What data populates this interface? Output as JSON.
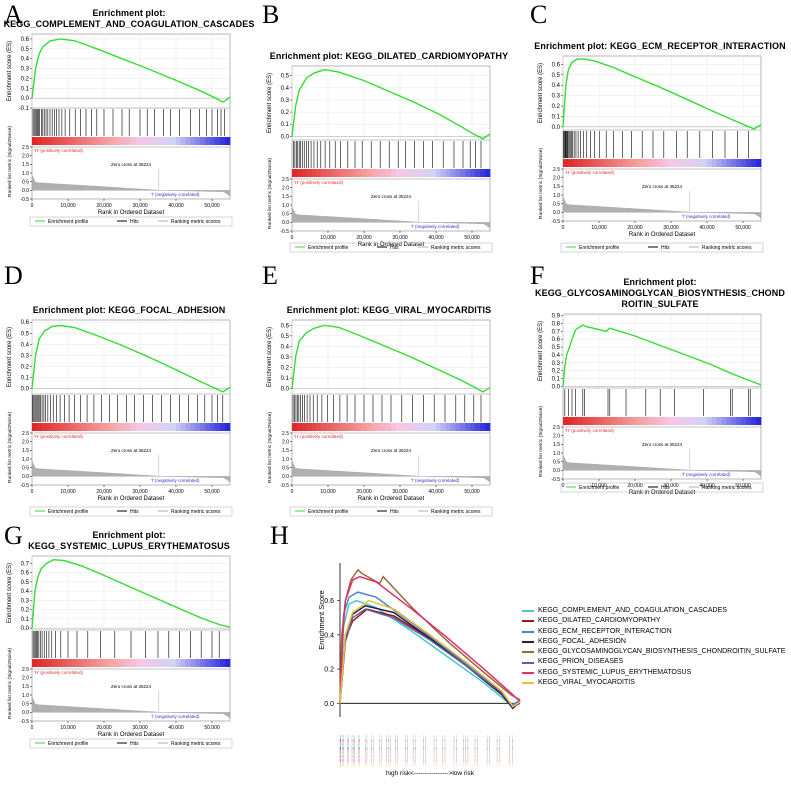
{
  "panel_letters": [
    "A",
    "B",
    "C",
    "D",
    "E",
    "F",
    "G",
    "H"
  ],
  "common": {
    "es_axis_label": "Enrichment score (ES)",
    "metric_axis_label": "Ranked list metric (Signal2Noise)",
    "x_axis_label": "Rank in Ordered Dataset",
    "pos_label": "'H' (positively correlated)",
    "neg_label": "'l' (negatively correlated)",
    "zero_cross": "Zero cross at 35224",
    "legend": [
      "Enrichment profile",
      "Hits",
      "Ranking metric scores"
    ],
    "x_ticks": [
      "0",
      "10,000",
      "20,000",
      "30,000",
      "40,000",
      "50,000"
    ],
    "metric_ticks": [
      "2.5",
      "2.0",
      "1.5",
      "1.0",
      "0.5",
      "0.0",
      "-0.5"
    ],
    "colors": {
      "es": "#33dd33",
      "hits": "#000000",
      "metric": "#b0b0b0",
      "pos_text": "#e03030",
      "neg_text": "#3030d0"
    }
  },
  "chart_data": [
    {
      "id": "A",
      "type": "line",
      "title_lines": [
        "Enrichment plot:",
        "KEGG_COMPLEMENT_AND_COAGULATION_CASCADES"
      ],
      "ylim": [
        -0.1,
        0.65
      ],
      "y_ticks": [
        "0.6",
        "0.5",
        "0.4",
        "0.3",
        "0.2",
        "0.1",
        "0.0",
        "-0.1"
      ],
      "x": [
        0,
        1000,
        2000,
        3000,
        5000,
        8000,
        12000,
        18000,
        25000,
        32000,
        40000,
        47000,
        51000,
        53000,
        54000,
        55000
      ],
      "y": [
        0,
        0.3,
        0.45,
        0.52,
        0.58,
        0.6,
        0.58,
        0.5,
        0.4,
        0.3,
        0.18,
        0.07,
        0.0,
        -0.04,
        -0.02,
        0.01
      ],
      "hits": [
        300,
        600,
        900,
        1200,
        1500,
        1800,
        2100,
        2600,
        3000,
        3400,
        3900,
        4400,
        5000,
        5600,
        6200,
        6800,
        7500,
        8300,
        9200,
        10500,
        12000,
        13500,
        15000,
        16500,
        18000,
        20000,
        22500,
        25000,
        27000,
        30000,
        32000,
        34000,
        36500,
        38500,
        41000,
        44000,
        46500,
        48500,
        50000,
        51500,
        52500,
        53500
      ]
    },
    {
      "id": "B",
      "type": "line",
      "title_lines": [
        "Enrichment plot: KEGG_DILATED_CARDIOMYOPATHY"
      ],
      "ylim": [
        -0.03,
        0.58
      ],
      "y_ticks": [
        "0.5",
        "0.4",
        "0.3",
        "0.2",
        "0.1",
        "0.0"
      ],
      "x": [
        0,
        1000,
        2000,
        4000,
        6000,
        9000,
        13000,
        20000,
        27000,
        34000,
        41000,
        47000,
        51000,
        53000,
        54000,
        55000
      ],
      "y": [
        0,
        0.25,
        0.38,
        0.48,
        0.52,
        0.55,
        0.53,
        0.46,
        0.37,
        0.28,
        0.18,
        0.08,
        0.01,
        -0.02,
        0.0,
        0.02
      ],
      "hits": [
        400,
        800,
        1200,
        1600,
        2000,
        2400,
        2900,
        3400,
        4000,
        4600,
        5300,
        6100,
        7000,
        8000,
        9200,
        10500,
        12000,
        13500,
        15500,
        17500,
        19500,
        22000,
        24500,
        27000,
        29500,
        31500,
        34000,
        36500,
        39000,
        42000,
        45000,
        47500,
        49500,
        51000,
        52500
      ]
    },
    {
      "id": "C",
      "type": "line",
      "title_lines": [
        "Enrichment plot: KEGG_ECM_RECEPTOR_INTERACTION"
      ],
      "ylim": [
        -0.03,
        0.68
      ],
      "y_ticks": [
        "0.6",
        "0.5",
        "0.4",
        "0.3",
        "0.2",
        "0.1",
        "0.0"
      ],
      "x": [
        0,
        800,
        1500,
        2500,
        4000,
        6000,
        9000,
        14000,
        20000,
        27000,
        34000,
        41000,
        47000,
        51000,
        53000,
        54000,
        55000
      ],
      "y": [
        0,
        0.4,
        0.55,
        0.62,
        0.65,
        0.65,
        0.63,
        0.57,
        0.48,
        0.38,
        0.27,
        0.16,
        0.07,
        0.01,
        -0.02,
        0.0,
        0.02
      ],
      "hits": [
        200,
        400,
        600,
        800,
        1000,
        1200,
        1400,
        1700,
        2000,
        2300,
        2700,
        3100,
        3600,
        4200,
        4900,
        5700,
        6600,
        7600,
        8800,
        10200,
        12000,
        14000,
        16500,
        19000,
        22000,
        25000,
        28000,
        31500,
        34500,
        38000,
        41500,
        45000,
        48500,
        51500
      ]
    },
    {
      "id": "D",
      "type": "line",
      "title_lines": [
        "Enrichment plot: KEGG_FOCAL_ADHESION"
      ],
      "ylim": [
        -0.05,
        0.62
      ],
      "y_ticks": [
        "0.6",
        "0.5",
        "0.4",
        "0.3",
        "0.2",
        "0.1",
        "0.0"
      ],
      "x": [
        0,
        1000,
        2000,
        3500,
        5500,
        8000,
        12000,
        18000,
        25000,
        32000,
        40000,
        47000,
        51000,
        53000,
        54000,
        55000
      ],
      "y": [
        0,
        0.3,
        0.45,
        0.52,
        0.56,
        0.57,
        0.55,
        0.48,
        0.39,
        0.29,
        0.17,
        0.06,
        0.0,
        -0.03,
        -0.01,
        0.01
      ],
      "hits": [
        200,
        500,
        800,
        1100,
        1400,
        1700,
        2000,
        2400,
        2800,
        3300,
        3800,
        4400,
        5100,
        5900,
        6800,
        7800,
        9000,
        10300,
        11800,
        13500,
        15300,
        17200,
        19300,
        21500,
        23800,
        26200,
        28500,
        31000,
        33500,
        36000,
        38500,
        41000,
        43500,
        46000,
        48000,
        50000,
        51500,
        53000
      ]
    },
    {
      "id": "E",
      "type": "line",
      "title_lines": [
        "Enrichment plot: KEGG_VIRAL_MYOCARDITIS"
      ],
      "ylim": [
        -0.05,
        0.65
      ],
      "y_ticks": [
        "0.6",
        "0.5",
        "0.4",
        "0.3",
        "0.2",
        "0.1",
        "0.0"
      ],
      "x": [
        0,
        1000,
        2000,
        4000,
        6000,
        9000,
        13000,
        19000,
        26000,
        33000,
        40000,
        47000,
        51000,
        53000,
        54000,
        55000
      ],
      "y": [
        0,
        0.3,
        0.45,
        0.53,
        0.57,
        0.6,
        0.58,
        0.5,
        0.4,
        0.3,
        0.19,
        0.08,
        0.01,
        -0.03,
        -0.01,
        0.01
      ],
      "hits": [
        300,
        700,
        1100,
        1500,
        1900,
        2400,
        2900,
        3500,
        4200,
        5000,
        5900,
        7000,
        8300,
        9800,
        11500,
        13300,
        15300,
        17500,
        20000,
        22500,
        25000,
        27500,
        30500,
        33500,
        36500,
        39500,
        42500,
        45500,
        48000,
        50500,
        52500
      ]
    },
    {
      "id": "F",
      "type": "line",
      "title_lines": [
        "Enrichment plot:",
        "KEGG_GLYCOSAMINOGLYCAN_BIOSYNTHESIS_CHOND",
        "ROITIN_SULFATE"
      ],
      "ylim": [
        -0.02,
        0.92
      ],
      "y_ticks": [
        "0.9",
        "0.8",
        "0.7",
        "0.6",
        "0.5",
        "0.4",
        "0.3",
        "0.2",
        "0.1",
        "0.0"
      ],
      "x": [
        0,
        500,
        1000,
        1800,
        2500,
        3500,
        5500,
        6500,
        12000,
        13000,
        20000,
        27000,
        34000,
        41000,
        47000,
        52000,
        55000
      ],
      "y": [
        0,
        0.25,
        0.4,
        0.5,
        0.6,
        0.72,
        0.78,
        0.76,
        0.7,
        0.74,
        0.64,
        0.52,
        0.4,
        0.28,
        0.16,
        0.07,
        0.02
      ],
      "hits": [
        500,
        1500,
        2500,
        3500,
        5500,
        6000,
        12500,
        13000,
        17500,
        23000,
        27000,
        31000,
        39000,
        46500,
        47000,
        51500,
        52000
      ]
    },
    {
      "id": "G",
      "type": "line",
      "title_lines": [
        "Enrichment plot:",
        "KEGG_SYSTEMIC_LUPUS_ERYTHEMATOSUS"
      ],
      "ylim": [
        -0.02,
        0.78
      ],
      "y_ticks": [
        "0.7",
        "0.6",
        "0.5",
        "0.4",
        "0.3",
        "0.2",
        "0.1",
        "0.0"
      ],
      "x": [
        0,
        800,
        1600,
        2500,
        4000,
        6000,
        9000,
        14000,
        20000,
        27000,
        34000,
        41000,
        47000,
        52000,
        55000
      ],
      "y": [
        0,
        0.4,
        0.55,
        0.64,
        0.7,
        0.74,
        0.73,
        0.67,
        0.57,
        0.45,
        0.33,
        0.21,
        0.11,
        0.04,
        0.01
      ],
      "hits": [
        300,
        600,
        900,
        1200,
        1500,
        1900,
        2300,
        2800,
        3400,
        4000,
        4700,
        5500,
        6500,
        8000,
        10000,
        12500,
        15500,
        19000,
        23000,
        27500,
        31500,
        35000,
        38000,
        41000,
        44000,
        47000,
        50000,
        52000
      ]
    },
    {
      "id": "H",
      "type": "line",
      "ylabel": "Enrichment Score",
      "ylim": [
        -0.08,
        0.82
      ],
      "y_ticks": [
        "0.6",
        "0.4",
        "0.2",
        "0.0"
      ],
      "bottom_label": "high risk<---------------->low risk",
      "series": [
        {
          "name": "KEGG_COMPLEMENT_AND_COAGULATION_CASCADES",
          "color": "#40c8d0",
          "x": [
            0,
            0.02,
            0.05,
            0.09,
            0.2,
            0.4,
            0.6,
            0.8,
            0.95,
            1.0
          ],
          "y": [
            0,
            0.45,
            0.58,
            0.6,
            0.56,
            0.42,
            0.27,
            0.12,
            -0.01,
            0.01
          ]
        },
        {
          "name": "KEGG_DILATED_CARDIOMYOPATHY",
          "color": "#8c1818",
          "x": [
            0,
            0.03,
            0.07,
            0.15,
            0.3,
            0.5,
            0.7,
            0.9,
            0.96,
            1.0
          ],
          "y": [
            0,
            0.38,
            0.48,
            0.55,
            0.51,
            0.38,
            0.24,
            0.06,
            -0.02,
            0.02
          ]
        },
        {
          "name": "KEGG_ECM_RECEPTOR_INTERACTION",
          "color": "#4a88c8",
          "x": [
            0,
            0.02,
            0.05,
            0.1,
            0.2,
            0.4,
            0.6,
            0.8,
            0.96,
            1.0
          ],
          "y": [
            0,
            0.52,
            0.62,
            0.65,
            0.62,
            0.47,
            0.31,
            0.15,
            -0.01,
            0.02
          ]
        },
        {
          "name": "KEGG_FOCAL_ADHESION",
          "color": "#2a1a40",
          "x": [
            0,
            0.03,
            0.07,
            0.14,
            0.3,
            0.5,
            0.7,
            0.9,
            0.96,
            1.0
          ],
          "y": [
            0,
            0.4,
            0.52,
            0.57,
            0.53,
            0.38,
            0.22,
            0.05,
            -0.03,
            0.01
          ]
        },
        {
          "name": "KEGG_GLYCOSAMINOGLYCAN_BIOSYNTHESIS_CHONDROITIN_SULFATE",
          "color": "#9a6a3a",
          "x": [
            0,
            0.01,
            0.03,
            0.06,
            0.1,
            0.12,
            0.22,
            0.24,
            0.4,
            0.6,
            0.8,
            0.95,
            1.0
          ],
          "y": [
            0,
            0.4,
            0.6,
            0.72,
            0.78,
            0.76,
            0.7,
            0.74,
            0.56,
            0.36,
            0.18,
            0.05,
            0.02
          ]
        },
        {
          "name": "KEGG_PRION_DISEASES",
          "color": "#6a5a9a",
          "x": [
            0,
            0.03,
            0.07,
            0.14,
            0.3,
            0.5,
            0.7,
            0.9,
            0.96,
            1.0
          ],
          "y": [
            0,
            0.36,
            0.5,
            0.55,
            0.5,
            0.37,
            0.22,
            0.06,
            -0.02,
            0.0
          ]
        },
        {
          "name": "KEGG_SYSTEMIC_LUPUS_ERYTHEMATOSUS",
          "color": "#e0306a",
          "x": [
            0,
            0.015,
            0.03,
            0.07,
            0.11,
            0.2,
            0.4,
            0.6,
            0.8,
            0.95,
            1.0
          ],
          "y": [
            0,
            0.4,
            0.6,
            0.72,
            0.74,
            0.71,
            0.55,
            0.38,
            0.2,
            0.06,
            0.01
          ]
        },
        {
          "name": "KEGG_VIRAL_MYOCARDITIS",
          "color": "#e8c040",
          "x": [
            0,
            0.03,
            0.07,
            0.16,
            0.3,
            0.5,
            0.7,
            0.9,
            0.96,
            1.0
          ],
          "y": [
            0,
            0.4,
            0.53,
            0.6,
            0.55,
            0.4,
            0.24,
            0.07,
            -0.02,
            0.01
          ]
        }
      ]
    }
  ]
}
